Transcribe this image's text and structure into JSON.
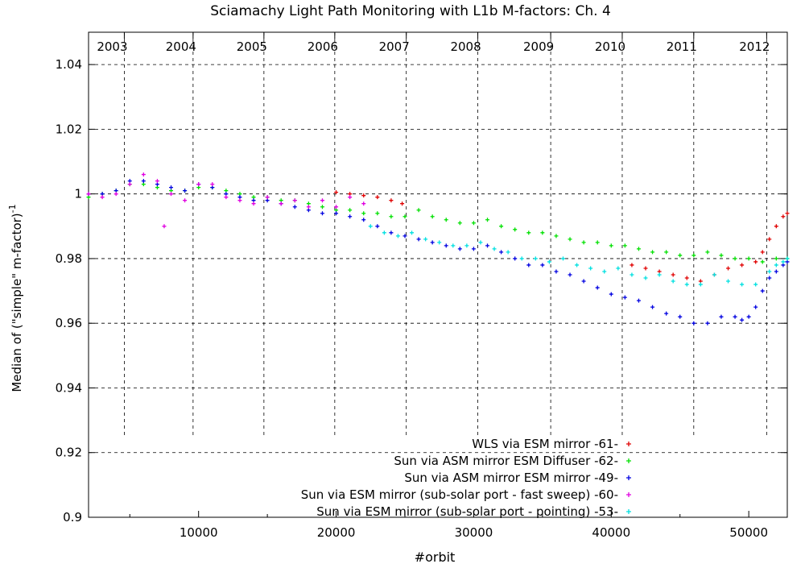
{
  "chart_data": {
    "type": "scatter",
    "title": "Sciamachy Light Path Monitoring with L1b M-factors: Ch. 4",
    "xlabel": "#orbit",
    "ylabel": "Median of (\"simple\" m-factor)",
    "ylabel_sup": "-1",
    "xlim": [
      2000,
      52800
    ],
    "ylim": [
      0.9,
      1.05
    ],
    "x_ticks": [
      10000,
      20000,
      30000,
      40000,
      50000
    ],
    "x_tick_labels": [
      "10000",
      "20000",
      "30000",
      "40000",
      "50000"
    ],
    "y_ticks": [
      0.9,
      0.92,
      0.94,
      0.96,
      0.98,
      1.0,
      1.02,
      1.04
    ],
    "y_tick_labels": [
      "0.9",
      "0.92",
      "0.94",
      "0.96",
      "0.98",
      "1",
      "1.02",
      "1.04"
    ],
    "year_axis": [
      {
        "label": "2003",
        "orbit": 4600
      },
      {
        "label": "2004",
        "orbit": 9600
      },
      {
        "label": "2005",
        "orbit": 14750
      },
      {
        "label": "2006",
        "orbit": 19900
      },
      {
        "label": "2007",
        "orbit": 25100
      },
      {
        "label": "2008",
        "orbit": 30300
      },
      {
        "label": "2009",
        "orbit": 35600
      },
      {
        "label": "2010",
        "orbit": 40800
      },
      {
        "label": "2011",
        "orbit": 46000
      },
      {
        "label": "2012",
        "orbit": 51300
      }
    ],
    "grid": true,
    "legend_position": "bottom-right",
    "series": [
      {
        "name": "WLS via ESM mirror -61-",
        "color": "#e00000",
        "points": [
          [
            20000,
            1.0005
          ],
          [
            21000,
            1.0
          ],
          [
            22000,
            0.9995
          ],
          [
            23000,
            0.999
          ],
          [
            24000,
            0.998
          ],
          [
            24800,
            0.997
          ],
          [
            41500,
            0.978
          ],
          [
            42500,
            0.977
          ],
          [
            43500,
            0.976
          ],
          [
            44500,
            0.975
          ],
          [
            45500,
            0.974
          ],
          [
            46500,
            0.973
          ],
          [
            47500,
            0.975
          ],
          [
            48500,
            0.977
          ],
          [
            49500,
            0.978
          ],
          [
            50500,
            0.979
          ],
          [
            51000,
            0.982
          ],
          [
            51500,
            0.986
          ],
          [
            52000,
            0.99
          ],
          [
            52500,
            0.993
          ],
          [
            52800,
            0.994
          ]
        ]
      },
      {
        "name": "Sun via ASM mirror  ESM Diffuser -62-",
        "color": "#00e000",
        "points": [
          [
            2000,
            0.999
          ],
          [
            3000,
            1.0
          ],
          [
            4000,
            1.001
          ],
          [
            5000,
            1.003
          ],
          [
            6000,
            1.003
          ],
          [
            7000,
            1.002
          ],
          [
            8000,
            1.001
          ],
          [
            9000,
            1.001
          ],
          [
            10000,
            1.002
          ],
          [
            11000,
            1.002
          ],
          [
            12000,
            1.001
          ],
          [
            13000,
            1.0
          ],
          [
            14000,
            0.999
          ],
          [
            15000,
            0.999
          ],
          [
            16000,
            0.998
          ],
          [
            17000,
            0.998
          ],
          [
            18000,
            0.997
          ],
          [
            19000,
            0.996
          ],
          [
            20000,
            0.995
          ],
          [
            21000,
            0.995
          ],
          [
            22000,
            0.994
          ],
          [
            23000,
            0.994
          ],
          [
            24000,
            0.993
          ],
          [
            25000,
            0.993
          ],
          [
            26000,
            0.995
          ],
          [
            27000,
            0.993
          ],
          [
            28000,
            0.992
          ],
          [
            29000,
            0.991
          ],
          [
            30000,
            0.991
          ],
          [
            31000,
            0.992
          ],
          [
            32000,
            0.99
          ],
          [
            33000,
            0.989
          ],
          [
            34000,
            0.988
          ],
          [
            35000,
            0.988
          ],
          [
            36000,
            0.987
          ],
          [
            37000,
            0.986
          ],
          [
            38000,
            0.985
          ],
          [
            39000,
            0.985
          ],
          [
            40000,
            0.984
          ],
          [
            41000,
            0.984
          ],
          [
            42000,
            0.983
          ],
          [
            43000,
            0.982
          ],
          [
            44000,
            0.982
          ],
          [
            45000,
            0.981
          ],
          [
            46000,
            0.981
          ],
          [
            47000,
            0.982
          ],
          [
            48000,
            0.981
          ],
          [
            49000,
            0.98
          ],
          [
            50000,
            0.98
          ],
          [
            51000,
            0.979
          ],
          [
            52000,
            0.98
          ],
          [
            52800,
            0.98
          ]
        ]
      },
      {
        "name": "Sun via ASM mirror  ESM mirror -49-",
        "color": "#0000e0",
        "points": [
          [
            2000,
            1.0
          ],
          [
            3000,
            1.0
          ],
          [
            4000,
            1.001
          ],
          [
            5000,
            1.004
          ],
          [
            6000,
            1.004
          ],
          [
            7000,
            1.003
          ],
          [
            8000,
            1.002
          ],
          [
            9000,
            1.001
          ],
          [
            10000,
            1.003
          ],
          [
            11000,
            1.002
          ],
          [
            12000,
            1.0
          ],
          [
            13000,
            0.999
          ],
          [
            14000,
            0.998
          ],
          [
            15000,
            0.998
          ],
          [
            16000,
            0.997
          ],
          [
            17000,
            0.996
          ],
          [
            18000,
            0.995
          ],
          [
            19000,
            0.994
          ],
          [
            20000,
            0.994
          ],
          [
            21000,
            0.993
          ],
          [
            22000,
            0.992
          ],
          [
            23000,
            0.99
          ],
          [
            24000,
            0.988
          ],
          [
            25000,
            0.987
          ],
          [
            26000,
            0.986
          ],
          [
            27000,
            0.985
          ],
          [
            28000,
            0.984
          ],
          [
            29000,
            0.983
          ],
          [
            30000,
            0.983
          ],
          [
            31000,
            0.984
          ],
          [
            32000,
            0.982
          ],
          [
            33000,
            0.98
          ],
          [
            34000,
            0.978
          ],
          [
            35000,
            0.978
          ],
          [
            36000,
            0.976
          ],
          [
            37000,
            0.975
          ],
          [
            38000,
            0.973
          ],
          [
            39000,
            0.971
          ],
          [
            40000,
            0.969
          ],
          [
            41000,
            0.968
          ],
          [
            42000,
            0.967
          ],
          [
            43000,
            0.965
          ],
          [
            44000,
            0.963
          ],
          [
            45000,
            0.962
          ],
          [
            46000,
            0.96
          ],
          [
            47000,
            0.96
          ],
          [
            48000,
            0.962
          ],
          [
            49000,
            0.962
          ],
          [
            49500,
            0.961
          ],
          [
            50000,
            0.962
          ],
          [
            50500,
            0.965
          ],
          [
            51000,
            0.97
          ],
          [
            51500,
            0.974
          ],
          [
            52000,
            0.976
          ],
          [
            52500,
            0.978
          ],
          [
            52800,
            0.979
          ]
        ]
      },
      {
        "name": "Sun via ESM mirror (sub-solar port - fast sweep) -60-",
        "color": "#e000e0",
        "points": [
          [
            2000,
            1.0
          ],
          [
            3000,
            0.999
          ],
          [
            4000,
            1.0
          ],
          [
            5000,
            1.003
          ],
          [
            6000,
            1.006
          ],
          [
            7000,
            1.004
          ],
          [
            7500,
            0.99
          ],
          [
            8000,
            1.0
          ],
          [
            9000,
            0.998
          ],
          [
            10000,
            1.003
          ],
          [
            11000,
            1.003
          ],
          [
            12000,
            0.999
          ],
          [
            13000,
            0.998
          ],
          [
            14000,
            0.997
          ],
          [
            15000,
            0.999
          ],
          [
            16000,
            0.997
          ],
          [
            17000,
            0.998
          ],
          [
            18000,
            0.996
          ],
          [
            19000,
            0.998
          ],
          [
            20000,
            0.996
          ],
          [
            21000,
            0.999
          ],
          [
            22000,
            0.997
          ]
        ]
      },
      {
        "name": "Sun via ESM mirror (sub-solar port - pointing) -53-",
        "color": "#00e0e0",
        "points": [
          [
            22500,
            0.99
          ],
          [
            23500,
            0.988
          ],
          [
            24500,
            0.987
          ],
          [
            25500,
            0.988
          ],
          [
            26500,
            0.986
          ],
          [
            27500,
            0.985
          ],
          [
            28500,
            0.984
          ],
          [
            29500,
            0.984
          ],
          [
            30500,
            0.985
          ],
          [
            31500,
            0.983
          ],
          [
            32500,
            0.982
          ],
          [
            33500,
            0.98
          ],
          [
            34500,
            0.98
          ],
          [
            35500,
            0.979
          ],
          [
            36500,
            0.98
          ],
          [
            37500,
            0.978
          ],
          [
            38500,
            0.977
          ],
          [
            39500,
            0.976
          ],
          [
            40500,
            0.977
          ],
          [
            41500,
            0.975
          ],
          [
            42500,
            0.974
          ],
          [
            43500,
            0.975
          ],
          [
            44500,
            0.973
          ],
          [
            45500,
            0.972
          ],
          [
            46500,
            0.972
          ],
          [
            47500,
            0.975
          ],
          [
            48500,
            0.973
          ],
          [
            49500,
            0.972
          ],
          [
            50500,
            0.972
          ],
          [
            51500,
            0.976
          ],
          [
            52000,
            0.978
          ],
          [
            52500,
            0.979
          ],
          [
            52800,
            0.98
          ]
        ]
      }
    ]
  }
}
